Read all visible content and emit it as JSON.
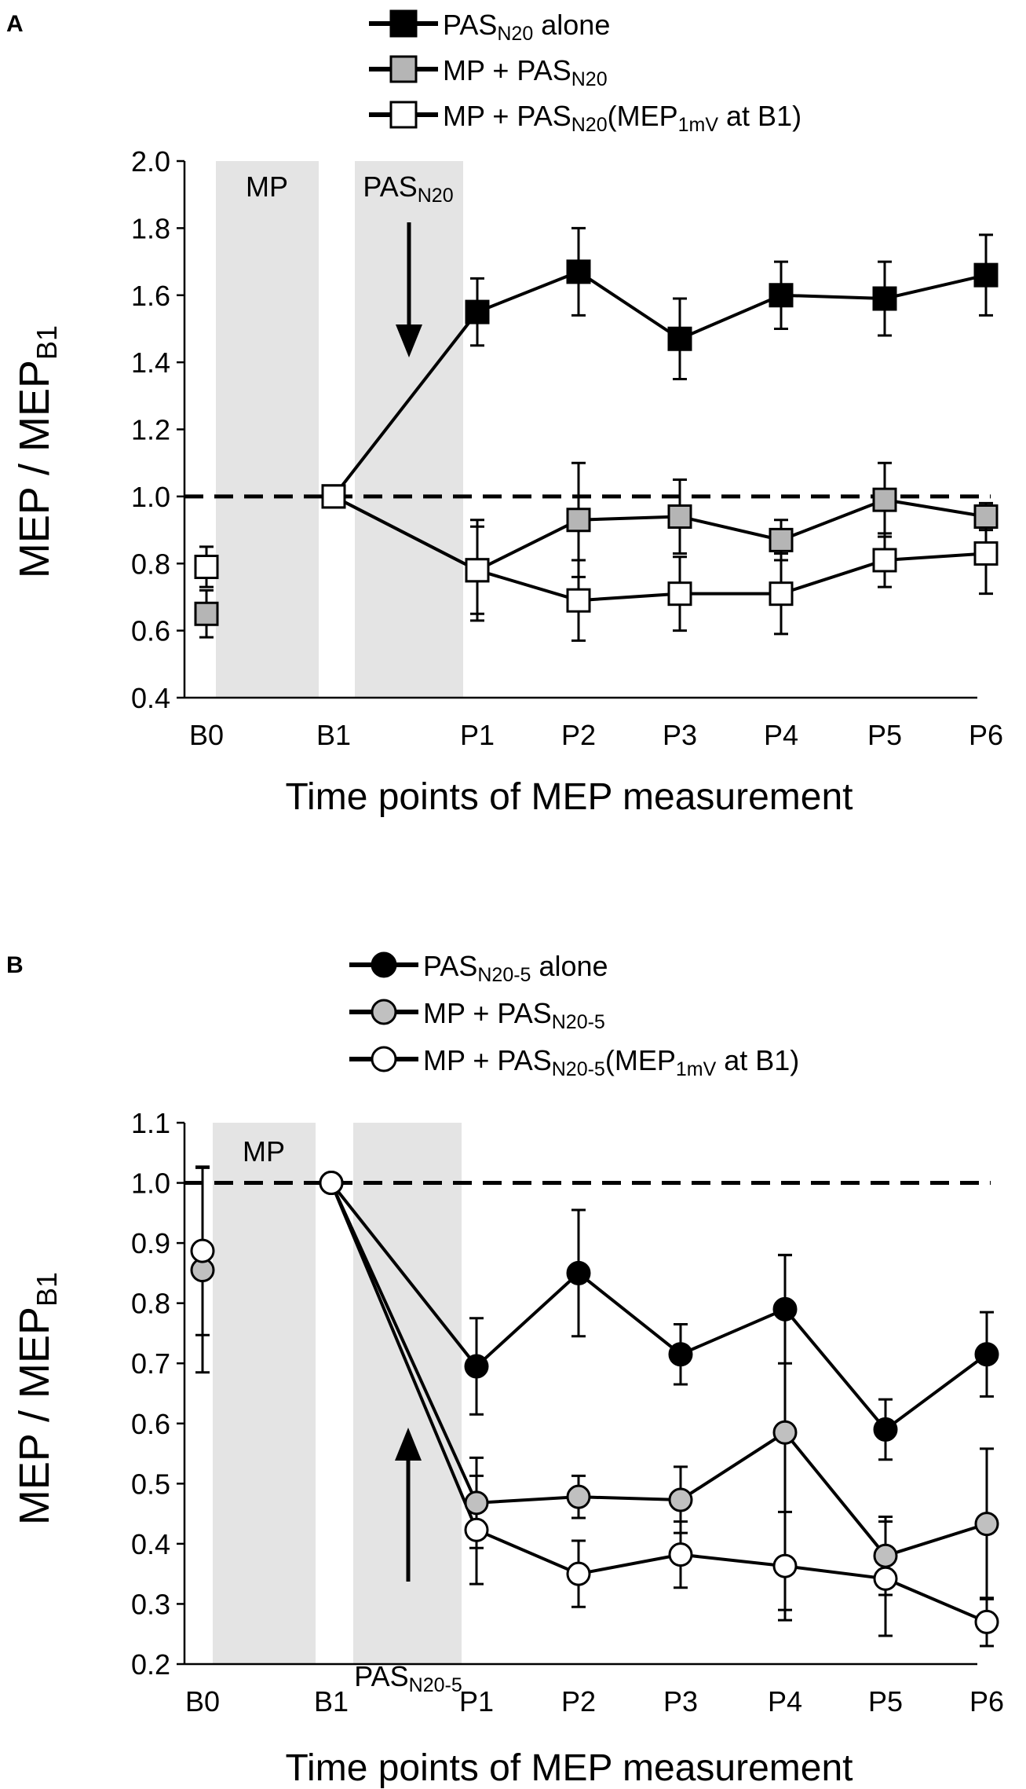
{
  "chart_data": [
    {
      "panel": "A",
      "type": "line",
      "marker": "square",
      "ylabel": "MEP / MEP",
      "ylabel_sub": "B1",
      "xlabel": "Time points of MEP measurement",
      "ylim": [
        0.4,
        2.0
      ],
      "yticks": [
        "2.0",
        "1.8",
        "1.6",
        "1.4",
        "1.2",
        "1.0",
        "0.8",
        "0.6",
        "0.4"
      ],
      "categories": [
        "B0",
        "B1",
        "P1",
        "P2",
        "P3",
        "P4",
        "P5",
        "P6"
      ],
      "reference_line": 1.0,
      "shaded_regions": [
        {
          "label": "MP",
          "label_sub": ""
        },
        {
          "label": "PAS",
          "label_sub": "N20"
        }
      ],
      "arrow_direction": "down",
      "legend": [
        {
          "base": "PAS",
          "sub": "N20",
          "tail": " alone",
          "mid": "",
          "mid_sub": "",
          "after": ""
        },
        {
          "base": "MP + PAS",
          "sub": "N20",
          "tail": "",
          "mid": "",
          "mid_sub": "",
          "after": ""
        },
        {
          "base": "MP + PAS",
          "sub": "N20",
          "tail": "(MEP",
          "mid_sub": "1mV",
          "after": " at B1)"
        }
      ],
      "series": [
        {
          "name": "PAS_N20 alone",
          "fill": "#000000",
          "connect_b0": false,
          "values": [
            null,
            1.0,
            1.55,
            1.67,
            1.47,
            1.6,
            1.59,
            1.66
          ],
          "errors": [
            null,
            0,
            0.1,
            0.13,
            0.12,
            0.1,
            0.11,
            0.12
          ]
        },
        {
          "name": "MP + PAS_N20",
          "fill": "#b5b5b5",
          "connect_b0": false,
          "values": [
            0.65,
            1.0,
            0.78,
            0.93,
            0.94,
            0.87,
            0.99,
            0.94
          ],
          "errors": [
            0.07,
            0,
            0.15,
            0.17,
            0.11,
            0.06,
            0.11,
            0.04
          ]
        },
        {
          "name": "MP + PAS_N20(MEP_1mV at B1)",
          "fill": "#ffffff",
          "connect_b0": false,
          "values": [
            0.79,
            1.0,
            0.78,
            0.69,
            0.71,
            0.71,
            0.81,
            0.83
          ],
          "errors": [
            0.06,
            0,
            0.13,
            0.12,
            0.11,
            0.12,
            0.08,
            0.12
          ]
        }
      ]
    },
    {
      "panel": "B",
      "type": "line",
      "marker": "circle",
      "ylabel": "MEP / MEP",
      "ylabel_sub": "B1",
      "xlabel": "Time points of MEP measurement",
      "ylim": [
        0.2,
        1.1
      ],
      "yticks": [
        "1.1",
        "1.0",
        "0.9",
        "0.8",
        "0.7",
        "0.6",
        "0.5",
        "0.4",
        "0.3",
        "0.2"
      ],
      "categories": [
        "B0",
        "B1",
        "P1",
        "P2",
        "P3",
        "P4",
        "P5",
        "P6"
      ],
      "reference_line": 1.0,
      "shaded_regions": [
        {
          "label": "MP",
          "label_sub": ""
        },
        {
          "label": "PAS",
          "label_sub": "N20-5"
        }
      ],
      "arrow_direction": "up",
      "legend": [
        {
          "base": "PAS",
          "sub": "N20-5",
          "tail": " alone",
          "mid_sub": "",
          "after": ""
        },
        {
          "base": "MP + PAS",
          "sub": "N20-5",
          "tail": "",
          "mid_sub": "",
          "after": ""
        },
        {
          "base": "MP + PAS",
          "sub": "N20-5",
          "tail": "(MEP",
          "mid_sub": "1mV",
          "after": " at B1)"
        }
      ],
      "series": [
        {
          "name": "PAS_N20-5 alone",
          "fill": "#000000",
          "connect_b0": false,
          "values": [
            null,
            1.0,
            0.695,
            0.85,
            0.715,
            0.79,
            0.59,
            0.715
          ],
          "errors": [
            null,
            0,
            0.08,
            0.105,
            0.05,
            0.09,
            0.05,
            0.07
          ]
        },
        {
          "name": "MP + PAS_N20-5",
          "fill": "#c0c0c0",
          "connect_b0": false,
          "values": [
            0.855,
            1.0,
            0.468,
            0.478,
            0.473,
            0.585,
            0.38,
            0.433
          ],
          "errors": [
            0.17,
            0,
            0.075,
            0.035,
            0.055,
            0.295,
            0.065,
            0.125
          ]
        },
        {
          "name": "MP + PAS_N20-5(MEP_1mV at B1)",
          "fill": "#ffffff",
          "connect_b0": false,
          "values": [
            0.887,
            1.0,
            0.423,
            0.35,
            0.382,
            0.363,
            0.342,
            0.27
          ],
          "errors": [
            0.14,
            0,
            0.09,
            0.055,
            0.055,
            0.09,
            0.095,
            0.04
          ]
        }
      ]
    }
  ]
}
